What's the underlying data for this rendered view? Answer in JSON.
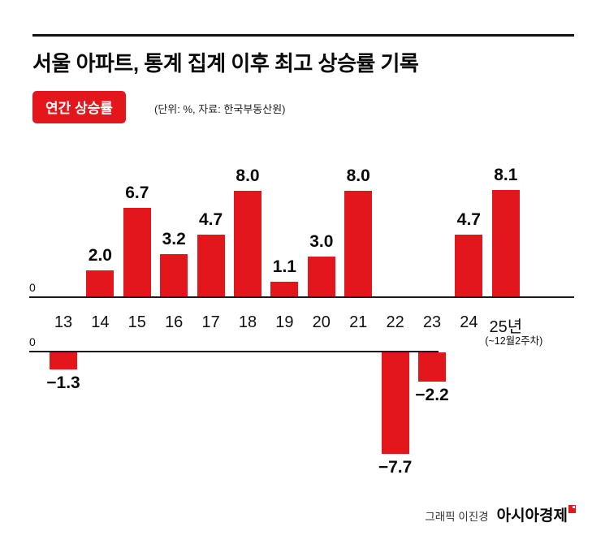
{
  "header": {
    "title": "서울 아파트, 통계 집계 이후 최고 상승률 기록",
    "badge": "연간 상승률",
    "unit_note": "(단위: %, 자료: 한국부동산원)"
  },
  "chart_data": {
    "type": "bar",
    "title": "연간 상승률",
    "unit": "%",
    "source": "한국부동산원",
    "categories": [
      "13",
      "14",
      "15",
      "16",
      "17",
      "18",
      "19",
      "20",
      "21",
      "22",
      "23",
      "24",
      "25년"
    ],
    "last_category_note": "(~12월2주차)",
    "values": [
      -1.3,
      2.0,
      6.7,
      3.2,
      4.7,
      8.0,
      1.1,
      3.0,
      8.0,
      -7.7,
      -2.2,
      4.7,
      8.1
    ],
    "bar_color": "#e3161c",
    "zero_label": "0",
    "ylim": [
      -8,
      8.5
    ],
    "grid": false,
    "legend": "none"
  },
  "footer": {
    "credit": "그래픽 이진경",
    "brand": "아시아경제"
  }
}
